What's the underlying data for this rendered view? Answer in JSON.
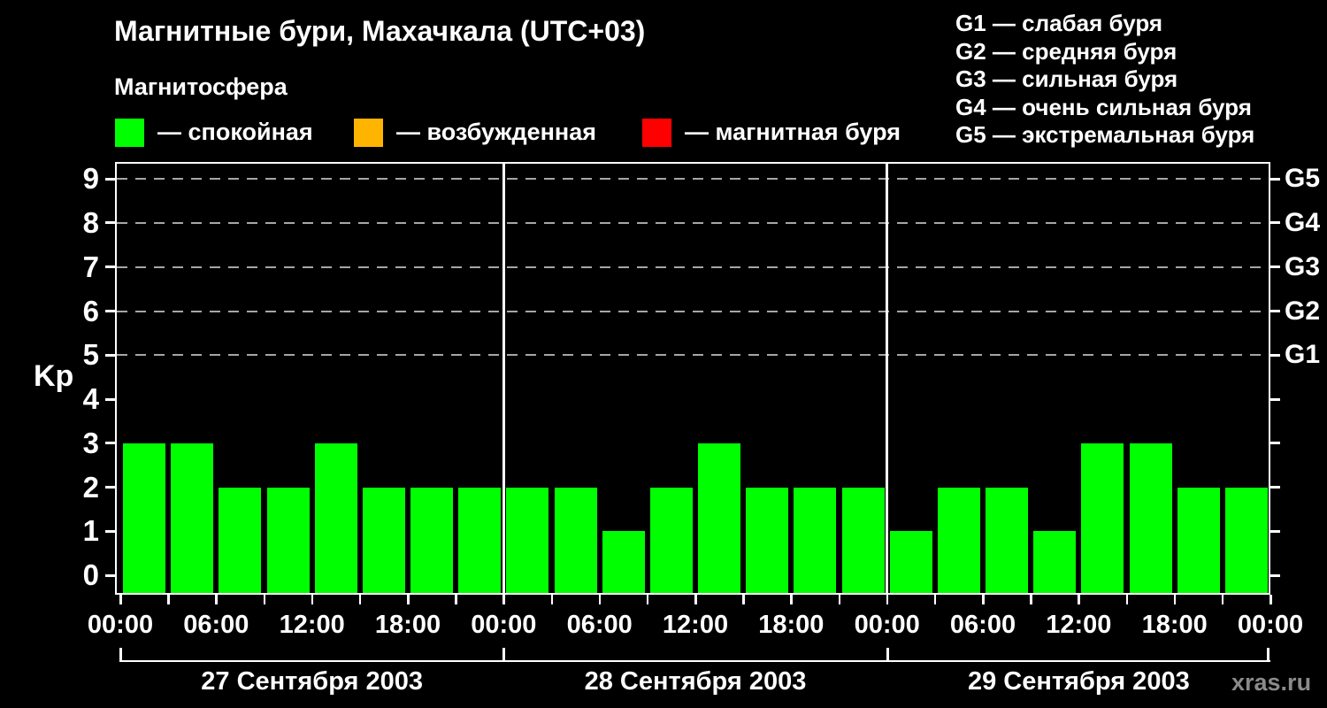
{
  "title": "Магнитные бури, Махачкала (UTC+03)",
  "magnetosphere": {
    "label": "Магнитосфера",
    "legend": [
      {
        "name": "quiet",
        "label": "— спокойная",
        "color": "#00ff00"
      },
      {
        "name": "disturbed",
        "label": "— возбужденная",
        "color": "#ffb400"
      },
      {
        "name": "storm",
        "label": "— магнитная буря",
        "color": "#ff0000"
      }
    ]
  },
  "storm_scale": [
    "G1 — слабая буря",
    "G2 — средняя буря",
    "G3 — сильная буря",
    "G4 — очень сильная буря",
    "G5 — экстремальная буря"
  ],
  "watermark": "xras.ru",
  "chart_data": {
    "type": "bar",
    "title": "Магнитные бури, Махачкала (UTC+03)",
    "xlabel": "",
    "ylabel": "Kp",
    "ylim": [
      0,
      9
    ],
    "yticks": [
      0,
      1,
      2,
      3,
      4,
      5,
      6,
      7,
      8,
      9
    ],
    "grid_levels": [
      5,
      6,
      7,
      8,
      9
    ],
    "grid": "dashed, horizontal, only at levels 5-9",
    "right_axis": [
      {
        "label": "G1",
        "kp": 5
      },
      {
        "label": "G2",
        "kp": 6
      },
      {
        "label": "G3",
        "kp": 7
      },
      {
        "label": "G4",
        "kp": 8
      },
      {
        "label": "G5",
        "kp": 9
      }
    ],
    "interval_hours": 3,
    "time_tick_step_hours": 3,
    "time_label_step_hours": 6,
    "time_labels_cycle": [
      "00:00",
      "06:00",
      "12:00",
      "18:00"
    ],
    "bar_color": "#00ff00",
    "days": [
      {
        "date": "27 Сентября 2003",
        "kp": [
          3,
          3,
          2,
          2,
          3,
          2,
          2,
          2
        ]
      },
      {
        "date": "28 Сентября 2003",
        "kp": [
          2,
          2,
          1,
          2,
          3,
          2,
          2,
          2
        ]
      },
      {
        "date": "29 Сентября 2003",
        "kp": [
          1,
          2,
          2,
          1,
          3,
          3,
          2,
          2
        ]
      }
    ]
  }
}
